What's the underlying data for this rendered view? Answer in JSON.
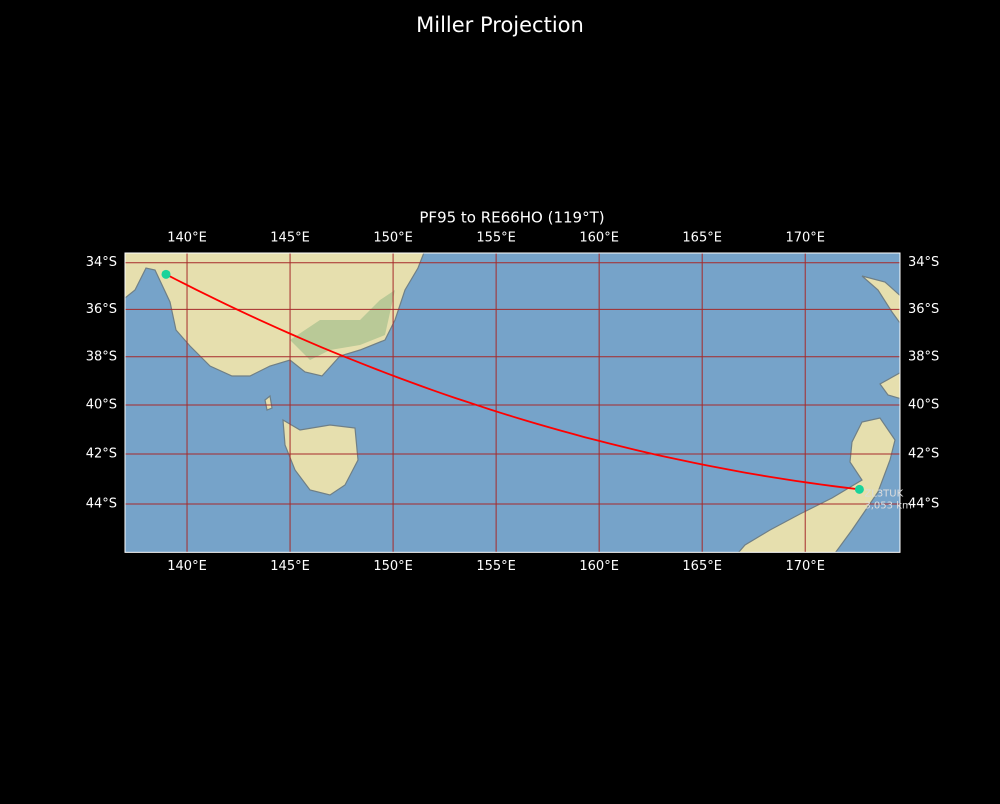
{
  "title": "Miller Projection",
  "map": {
    "subtitle": "PF95 to RE66HO (119°T)",
    "xlim": [
      136.99,
      174.6
    ],
    "ylim": [
      -45.9,
      -33.58
    ],
    "xticks": [
      {
        "value": 140,
        "label": "140°E"
      },
      {
        "value": 145,
        "label": "145°E"
      },
      {
        "value": 150,
        "label": "150°E"
      },
      {
        "value": 155,
        "label": "155°E"
      },
      {
        "value": 160,
        "label": "160°E"
      },
      {
        "value": 165,
        "label": "165°E"
      },
      {
        "value": 170,
        "label": "170°E"
      }
    ],
    "yticks": [
      {
        "value": -34,
        "label": "34°S"
      },
      {
        "value": -36,
        "label": "36°S"
      },
      {
        "value": -38,
        "label": "38°S"
      },
      {
        "value": -40,
        "label": "40°S"
      },
      {
        "value": -42,
        "label": "42°S"
      },
      {
        "value": -44,
        "label": "44°S"
      }
    ],
    "grid": true,
    "grid_color": "#a52a2a",
    "route_color": "#ff0000",
    "marker_color": "#19d39a",
    "points": [
      {
        "lon": 138.98,
        "lat": -34.5
      },
      {
        "lon": 172.63,
        "lat": -43.42,
        "label": "ZL3TUK",
        "distance": "3,053 km"
      }
    ]
  }
}
